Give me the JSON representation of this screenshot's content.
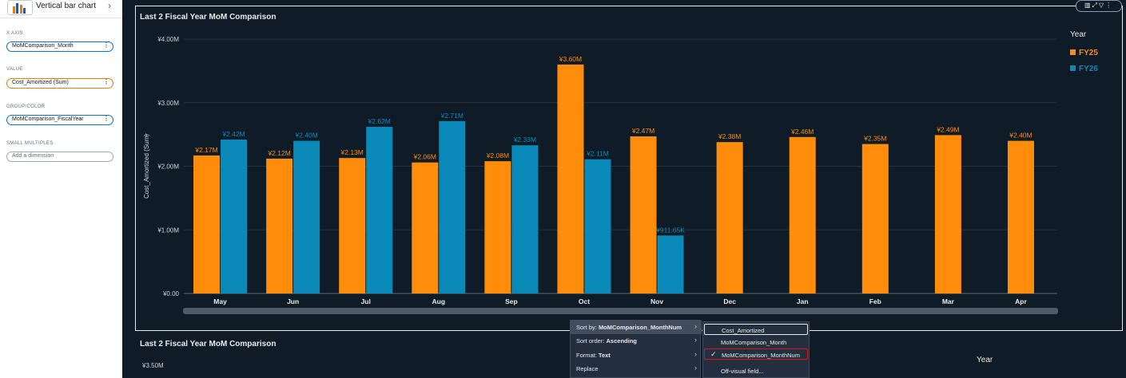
{
  "left_panel": {
    "visual_type": "Vertical bar chart",
    "x_axis": {
      "label": "X AXIS",
      "field": "MoMComparison_Month"
    },
    "value": {
      "label": "VALUE",
      "field": "Cost_Amortized (Sum)"
    },
    "group": {
      "label": "GROUP/COLOR",
      "field": "MoMComparison_FiscalYear"
    },
    "small_multiples": {
      "label": "SMALL MULTIPLES",
      "placeholder": "Add a dimension"
    }
  },
  "toolbar": {
    "icons": [
      "bar-chart-icon",
      "expand-icon",
      "filter-icon",
      "more-options-icon"
    ]
  },
  "chart_data": {
    "type": "bar",
    "title": "Last 2 Fiscal Year MoM Comparison",
    "xlabel": "",
    "ylabel": "Cost_Amortized (Sum)",
    "ylim": [
      0,
      4000000
    ],
    "yticks": [
      0,
      1000000,
      2000000,
      3000000,
      4000000
    ],
    "ytick_labels": [
      "¥0.00",
      "¥1.00M",
      "¥2.00M",
      "¥3.00M",
      "¥4.00M"
    ],
    "categories": [
      "May",
      "Jun",
      "Jul",
      "Aug",
      "Sep",
      "Oct",
      "Nov",
      "Dec",
      "Jan",
      "Feb",
      "Mar",
      "Apr"
    ],
    "legend_title": "Year",
    "legend_position": "right",
    "grid": true,
    "series": [
      {
        "name": "FY25",
        "color": "#ff8c0a",
        "values": [
          2170000,
          2120000,
          2130000,
          2060000,
          2080000,
          3600000,
          2470000,
          2380000,
          2460000,
          2350000,
          2490000,
          2400000
        ],
        "labels": [
          "¥2.17M",
          "¥2.12M",
          "¥2.13M",
          "¥2.06M",
          "¥2.08M",
          "¥3.60M",
          "¥2.47M",
          "¥2.38M",
          "¥2.46M",
          "¥2.35M",
          "¥2.49M",
          "¥2.40M"
        ]
      },
      {
        "name": "FY26",
        "color": "#0a8ab8",
        "values": [
          2420000,
          2400000,
          2620000,
          2710000,
          2330000,
          2110000,
          911650,
          null,
          null,
          null,
          null,
          null
        ],
        "labels": [
          "¥2.42M",
          "¥2.40M",
          "¥2.62M",
          "¥2.71M",
          "¥2.33M",
          "¥2.11M",
          "¥911.65K",
          null,
          null,
          null,
          null,
          null
        ]
      }
    ]
  },
  "second_visual": {
    "title": "Last 2 Fiscal Year MoM Comparison",
    "top_tick": "¥3.50M",
    "legend_title": "Year"
  },
  "context_menu": {
    "items": [
      {
        "prefix": "Sort by: ",
        "value": "MoMComparison_MonthNum"
      },
      {
        "prefix": "Sort order: ",
        "value": "Ascending"
      },
      {
        "prefix": "Format: ",
        "value": "Text"
      },
      {
        "prefix": "Replace",
        "value": ""
      }
    ],
    "submenu": [
      "Cost_Amortized",
      "MoMComparison_Month",
      "MoMComparison_MonthNum",
      "Off-visual field..."
    ]
  }
}
